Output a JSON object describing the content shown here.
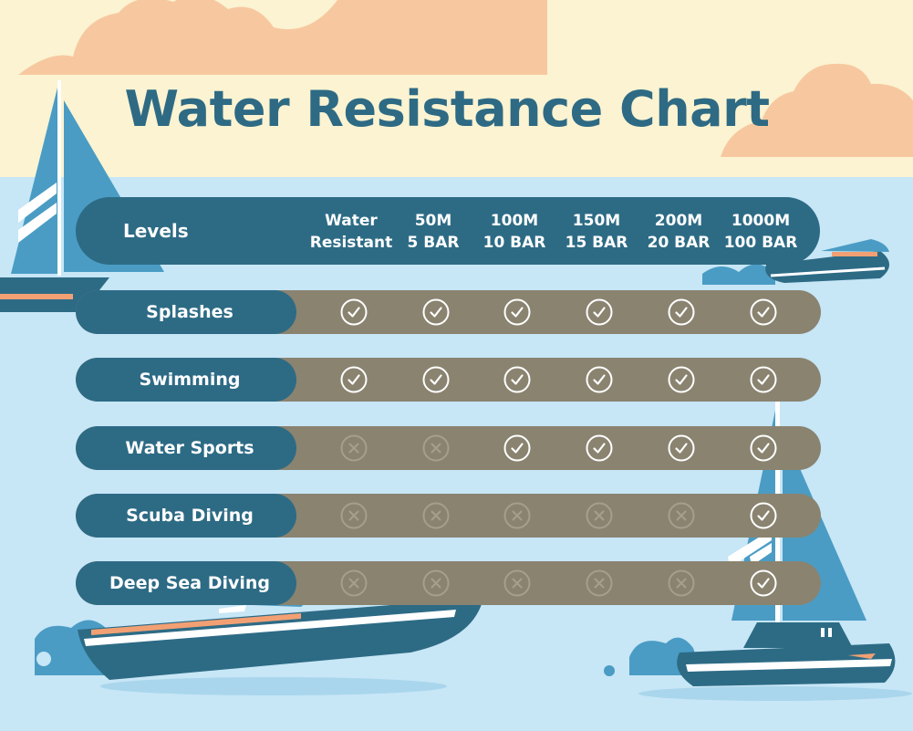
{
  "title": "Water Resistance Chart",
  "header": {
    "label": "Levels",
    "columns": [
      {
        "line1": "Water",
        "line2": "Resistant"
      },
      {
        "line1": "50M",
        "line2": "5 BAR"
      },
      {
        "line1": "100M",
        "line2": "10 BAR"
      },
      {
        "line1": "150M",
        "line2": "15 BAR"
      },
      {
        "line1": "200M",
        "line2": "20 BAR"
      },
      {
        "line1": "1000M",
        "line2": "100 BAR"
      }
    ]
  },
  "rows": [
    {
      "label": "Splashes",
      "values": [
        true,
        true,
        true,
        true,
        true,
        true
      ]
    },
    {
      "label": "Swimming",
      "values": [
        true,
        true,
        true,
        true,
        true,
        true
      ]
    },
    {
      "label": "Water Sports",
      "values": [
        false,
        false,
        true,
        true,
        true,
        true
      ]
    },
    {
      "label": "Scuba Diving",
      "values": [
        false,
        false,
        false,
        false,
        false,
        true
      ]
    },
    {
      "label": "Deep Sea Diving",
      "values": [
        false,
        false,
        false,
        false,
        false,
        true
      ]
    }
  ],
  "colors": {
    "sky": "#fbf3d1",
    "sea": "#c7e6f6",
    "cloud": "#f7c8a0",
    "navy": "#2d6b85",
    "row_fill": "#8a8370",
    "boat_blue": "#4a9cc4",
    "accent_orange": "#f2a073"
  },
  "icons": {
    "yes": "check-circle-icon",
    "no": "cross-circle-icon"
  }
}
